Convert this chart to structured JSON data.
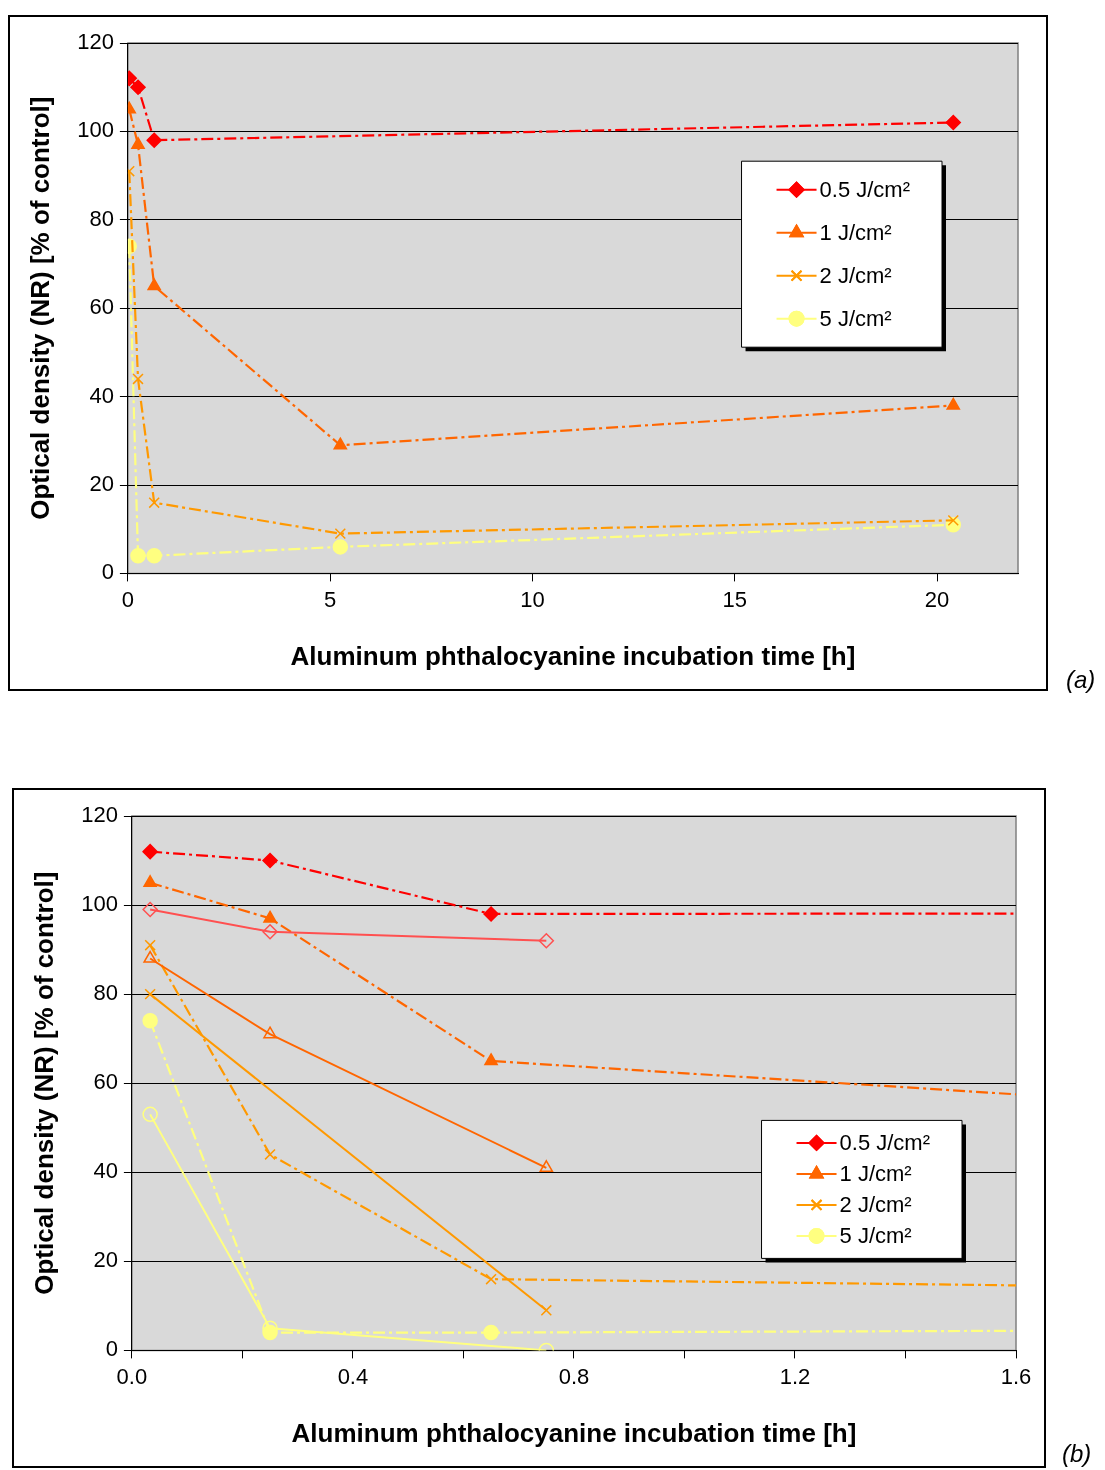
{
  "chart_data": [
    {
      "type": "line",
      "xlabel": "Aluminum phthalocyanine incubation time [h]",
      "ylabel": "Optical density (NR) [% of control]",
      "xlim": [
        0,
        22
      ],
      "xticks": [
        0,
        5,
        10,
        15,
        20
      ],
      "ylim": [
        0,
        120
      ],
      "yticks": [
        0,
        20,
        40,
        60,
        80,
        100,
        120
      ],
      "grid": "y",
      "legend": "right",
      "annotations": [
        "(a)"
      ],
      "series": [
        {
          "name": "0.5 J/cm²",
          "color": "#ff0000",
          "marker": "diamond",
          "line_style": "dashed",
          "x": [
            0.033,
            0.25,
            0.65,
            20.4
          ],
          "values": [
            112,
            110,
            98,
            102
          ]
        },
        {
          "name": "1 J/cm²",
          "color": "#ff6600",
          "marker": "triangle",
          "line_style": "dashed",
          "x": [
            0.033,
            0.25,
            0.65,
            5.25,
            20.4
          ],
          "values": [
            105,
            97,
            65,
            29,
            38
          ]
        },
        {
          "name": "2 J/cm²",
          "color": "#ff9900",
          "marker": "cross",
          "line_style": "dashed",
          "x": [
            0.033,
            0.25,
            0.65,
            5.25,
            20.4
          ],
          "values": [
            91,
            44,
            16,
            9,
            12
          ]
        },
        {
          "name": "5 J/cm²",
          "color": "#ffff80",
          "marker": "circle",
          "line_style": "dashed",
          "x": [
            0.033,
            0.25,
            0.65,
            5.25,
            20.4
          ],
          "values": [
            74,
            4,
            4,
            6,
            11
          ]
        }
      ]
    },
    {
      "type": "line",
      "xlabel": "Aluminum phthalocyanine incubation time [h]",
      "ylabel": "Optical density (NR) [% of control]",
      "xlim": [
        0,
        1.6
      ],
      "xticks": [
        {
          "value": 0,
          "label": "0.0"
        },
        {
          "value": 0.2,
          "label": null
        },
        0.4,
        {
          "value": 0.6,
          "label": null
        },
        0.8,
        {
          "value": 1,
          "label": null
        },
        1.2,
        {
          "value": 1.4,
          "label": null
        },
        1.6
      ],
      "ylim": [
        0,
        120
      ],
      "yticks": [
        0,
        20,
        40,
        60,
        80,
        100,
        120
      ],
      "grid": "y",
      "legend": "bottom right",
      "annotations": [
        "(b)"
      ],
      "series": [
        {
          "color": "#ff5050",
          "marker": "diamond",
          "line_style": "solid",
          "x": [
            0.033,
            0.25,
            0.75
          ],
          "values": [
            99,
            94,
            92
          ]
        },
        {
          "color": "#ff6600",
          "marker": "triangle",
          "line_style": "solid",
          "x": [
            0.033,
            0.25,
            0.75
          ],
          "values": [
            88,
            71,
            41
          ]
        },
        {
          "color": "#ff9900",
          "marker": "cross",
          "line_style": "solid",
          "x": [
            0.033,
            0.75
          ],
          "values": [
            80,
            9
          ]
        },
        {
          "color": "#ffff80",
          "marker": "circle",
          "line_style": "solid",
          "x": [
            0.033,
            0.25,
            0.75
          ],
          "values": [
            53,
            5,
            0
          ]
        },
        {
          "name": "0.5 J/cm²",
          "color": "#ff0000",
          "marker": "diamond",
          "line_style": "dashed",
          "x": [
            0.033,
            0.25,
            0.65,
            1.6
          ],
          "values": [
            112,
            110,
            98,
            98.1
          ]
        },
        {
          "name": "1 J/cm²",
          "color": "#ff6600",
          "marker": "triangle",
          "line_style": "dashed",
          "x": [
            0.033,
            0.25,
            0.65,
            1.6
          ],
          "values": [
            105,
            97,
            65,
            57.5
          ]
        },
        {
          "name": "2 J/cm²",
          "color": "#ff9900",
          "marker": "cross",
          "line_style": "dashed",
          "x": [
            0.033,
            0.25,
            0.65,
            1.6
          ],
          "values": [
            91,
            44,
            16,
            14.6
          ]
        },
        {
          "name": "5 J/cm²",
          "color": "#ffff80",
          "marker": "circle",
          "line_style": "dashed",
          "x": [
            0.033,
            0.25,
            0.65,
            1.6
          ],
          "values": [
            74,
            4,
            4,
            4.4
          ]
        }
      ]
    }
  ]
}
